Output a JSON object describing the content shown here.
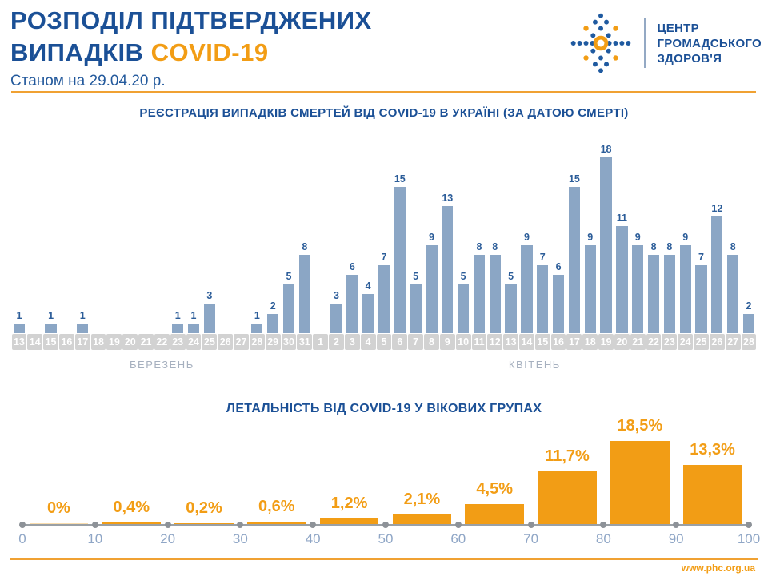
{
  "header": {
    "title_line1": "РОЗПОДІЛ ПІДТВЕРДЖЕНИХ",
    "title_line2": "ВИПАДКІВ",
    "title_highlight": "COVID-19",
    "subtitle": "Станом на 29.04.20 р.",
    "org_name_lines": [
      "ЦЕНТР",
      "ГРОМАДСЬКОГО",
      "ЗДОРОВ'Я"
    ]
  },
  "colors": {
    "primary_blue": "#1b5096",
    "accent_orange": "#f29d15",
    "bar_blue": "#8ba6c5",
    "bar_label_blue": "#2c5d99",
    "axis_band_gray": "#d2d2d2",
    "muted_label": "#a6b0bf",
    "axis_tick_blue": "#8fa6c6"
  },
  "chart_data": [
    {
      "type": "bar",
      "title": "РЕЄСТРАЦІЯ ВИПАДКІВ СМЕРТЕЙ ВІД COVID-19 В УКРАЇНІ (ЗА ДАТОЮ СМЕРТІ)",
      "groups": [
        {
          "label": "БЕРЕЗЕНЬ",
          "count": 19
        },
        {
          "label": "КВІТЕНЬ",
          "count": 28
        }
      ],
      "categories": [
        "13",
        "14",
        "15",
        "16",
        "17",
        "18",
        "19",
        "20",
        "21",
        "22",
        "23",
        "24",
        "25",
        "26",
        "27",
        "28",
        "29",
        "30",
        "31",
        "1",
        "2",
        "3",
        "4",
        "5",
        "6",
        "7",
        "8",
        "9",
        "10",
        "11",
        "12",
        "13",
        "14",
        "15",
        "16",
        "17",
        "18",
        "19",
        "20",
        "21",
        "22",
        "23",
        "24",
        "25",
        "26",
        "27",
        "28"
      ],
      "values": [
        1,
        0,
        1,
        0,
        1,
        0,
        0,
        0,
        0,
        0,
        1,
        1,
        3,
        0,
        0,
        1,
        2,
        5,
        8,
        0,
        3,
        6,
        4,
        7,
        15,
        5,
        9,
        13,
        5,
        8,
        8,
        5,
        9,
        7,
        6,
        15,
        9,
        18,
        11,
        9,
        8,
        8,
        9,
        7,
        12,
        8,
        2
      ],
      "ylim": [
        0,
        18
      ],
      "xlabel": "",
      "ylabel": "",
      "legend": "none",
      "grid": false
    },
    {
      "type": "bar",
      "title": "ЛЕТАЛЬНІСТЬ ВІД COVID-19 У ВІКОВИХ ГРУПАХ",
      "axis_ticks": [
        "0",
        "10",
        "20",
        "30",
        "40",
        "50",
        "60",
        "70",
        "80",
        "90",
        "100"
      ],
      "age_ranges": [
        "0-10",
        "10-20",
        "20-30",
        "30-40",
        "40-50",
        "50-60",
        "60-70",
        "70-80",
        "80-90",
        "90-100"
      ],
      "labels": [
        "0%",
        "0,4%",
        "0,2%",
        "0,6%",
        "1,2%",
        "2,1%",
        "4,5%",
        "11,7%",
        "18,5%",
        "13,3%"
      ],
      "values": [
        0,
        0.4,
        0.2,
        0.6,
        1.2,
        2.1,
        4.5,
        11.7,
        18.5,
        13.3
      ],
      "ylim": [
        0,
        20
      ],
      "xlabel": "",
      "ylabel": "",
      "legend": "none",
      "grid": false
    }
  ],
  "footer": {
    "url": "www.phc.org.ua"
  }
}
